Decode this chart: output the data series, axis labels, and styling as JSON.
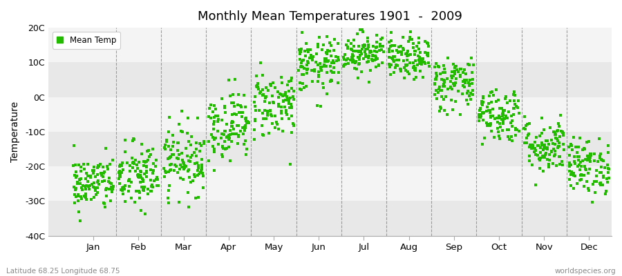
{
  "title": "Monthly Mean Temperatures 1901  -  2009",
  "ylabel": "Temperature",
  "subtitle_left": "Latitude 68.25 Longitude 68.75",
  "subtitle_right": "worldspecies.org",
  "ylim": [
    -40,
    20
  ],
  "yticks": [
    -40,
    -30,
    -20,
    -10,
    0,
    10,
    20
  ],
  "ytick_labels": [
    "-40C",
    "-30C",
    "-20C",
    "-10C",
    "0C",
    "10C",
    "20C"
  ],
  "months": [
    "Jan",
    "Feb",
    "Mar",
    "Apr",
    "May",
    "Jun",
    "Jul",
    "Aug",
    "Sep",
    "Oct",
    "Nov",
    "Dec"
  ],
  "dot_color": "#22bb00",
  "background_color": "#ffffff",
  "plot_bg_color": "#ffffff",
  "band_color_dark": "#e8e8e8",
  "band_color_light": "#f4f4f4",
  "legend_label": "Mean Temp",
  "n_years": 109,
  "monthly_means": [
    -25,
    -23,
    -18,
    -8,
    -2,
    9,
    13,
    11,
    4,
    -5,
    -14,
    -20
  ],
  "monthly_stds": [
    4,
    5,
    5,
    5,
    5,
    4,
    3,
    3,
    4,
    4,
    4,
    4
  ]
}
